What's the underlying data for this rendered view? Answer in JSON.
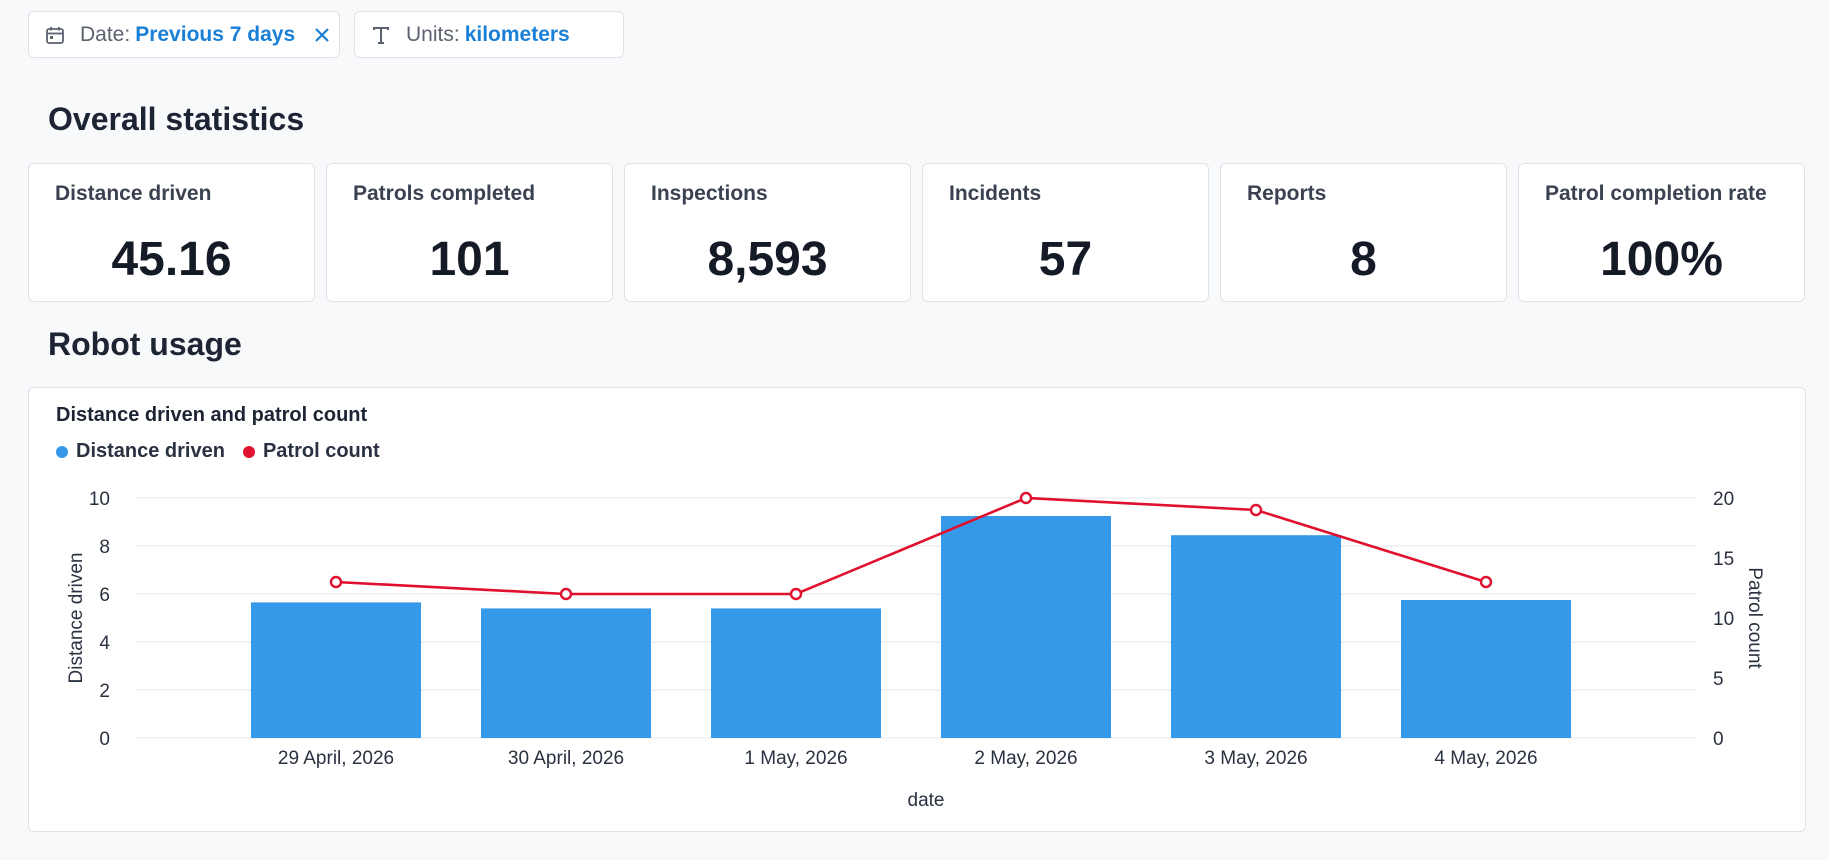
{
  "filters": {
    "date": {
      "label": "Date:",
      "value": "Previous 7 days"
    },
    "units": {
      "label": "Units:",
      "value": "kilometers"
    }
  },
  "sections": {
    "overall": "Overall statistics",
    "usage": "Robot usage"
  },
  "stats": [
    {
      "label": "Distance driven",
      "value": "45.16"
    },
    {
      "label": "Patrols completed",
      "value": "101"
    },
    {
      "label": "Inspections",
      "value": "8,593"
    },
    {
      "label": "Incidents",
      "value": "57"
    },
    {
      "label": "Reports",
      "value": "8"
    },
    {
      "label": "Patrol completion rate",
      "value": "100%"
    }
  ],
  "colors": {
    "accent": "#1a7fd6",
    "bar": "#3598e8",
    "line": "#e0112e"
  },
  "chart_data": {
    "type": "bar+line",
    "title": "Distance driven and patrol count",
    "xlabel": "date",
    "ylabel": "Distance driven",
    "y2label": "Patrol count",
    "categories": [
      "29 April, 2026",
      "30 April, 2026",
      "1 May, 2026",
      "2 May, 2026",
      "3 May, 2026",
      "4 May, 2026"
    ],
    "ylim": [
      0,
      10
    ],
    "y2lim": [
      0,
      20
    ],
    "yticks": [
      0,
      2,
      4,
      6,
      8,
      10
    ],
    "y2ticks": [
      0,
      5,
      10,
      15,
      20
    ],
    "grid": true,
    "legend_position": "top-left",
    "series": [
      {
        "name": "Distance driven",
        "type": "bar",
        "axis": "left",
        "values": [
          5.65,
          5.4,
          5.4,
          9.25,
          8.45,
          5.75
        ]
      },
      {
        "name": "Patrol count",
        "type": "line",
        "axis": "right",
        "values": [
          13,
          12,
          12,
          20,
          19,
          13
        ]
      }
    ]
  }
}
